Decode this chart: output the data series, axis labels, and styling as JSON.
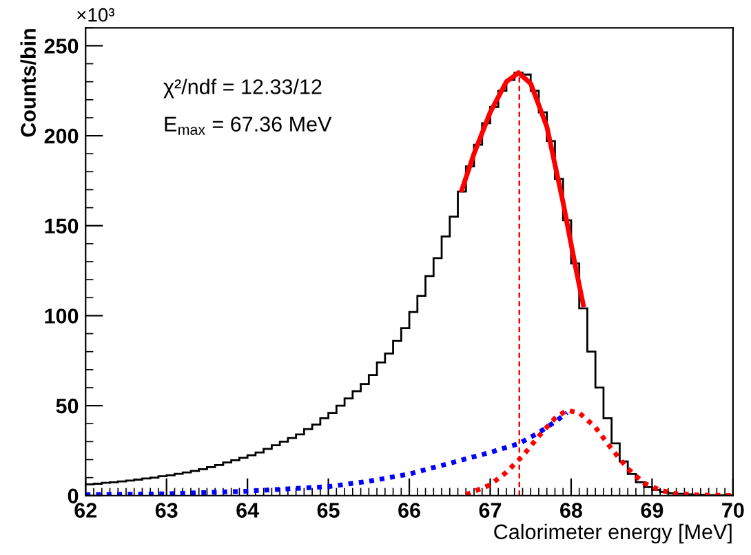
{
  "chart_data": {
    "type": "histogram",
    "color": "#000000",
    "xlabel": "Calorimeter energy [MeV]",
    "ylabel": "Counts/bin",
    "xlim": [
      62,
      70
    ],
    "ylim": [
      0,
      260
    ],
    "xticks": [
      62,
      63,
      64,
      65,
      66,
      67,
      68,
      69,
      70
    ],
    "yticks": [
      0,
      50,
      100,
      150,
      200,
      250
    ],
    "bins": [
      62.0,
      62.1,
      62.2,
      62.3,
      62.4,
      62.5,
      62.6,
      62.7,
      62.8,
      62.9,
      63.0,
      63.1,
      63.2,
      63.3,
      63.4,
      63.5,
      63.6,
      63.7,
      63.8,
      63.9,
      64.0,
      64.1,
      64.2,
      64.3,
      64.4,
      64.5,
      64.6,
      64.7,
      64.8,
      64.9,
      65.0,
      65.1,
      65.2,
      65.3,
      65.4,
      65.5,
      65.6,
      65.7,
      65.8,
      65.9,
      66.0,
      66.1,
      66.2,
      66.3,
      66.4,
      66.5,
      66.6,
      66.7,
      66.8,
      66.9,
      67.0,
      67.1,
      67.2,
      67.3,
      67.4,
      67.5,
      67.6,
      67.7,
      67.8,
      67.9,
      68.0,
      68.1,
      68.2,
      68.3,
      68.4,
      68.5,
      68.6,
      68.7,
      68.8,
      68.9,
      69.0,
      69.1,
      69.2,
      69.3,
      69.4,
      69.5,
      69.6,
      69.7,
      69.8,
      69.9,
      70.0
    ],
    "values": [
      6.3,
      6.6,
      7.1,
      7.4,
      7.9,
      8.4,
      8.9,
      9.5,
      10,
      10.8,
      11.3,
      12.1,
      12.9,
      13.7,
      14.7,
      15.8,
      17,
      18.4,
      19.7,
      21,
      22.4,
      24,
      26,
      28,
      30,
      32,
      34,
      37,
      39.5,
      43,
      46,
      50,
      54,
      58,
      62,
      67,
      74,
      79,
      86,
      93,
      102,
      111,
      122,
      132,
      144,
      155,
      169,
      183,
      195,
      207,
      216,
      225,
      231,
      235,
      234,
      225,
      213,
      197,
      176,
      153,
      129,
      104,
      80,
      60,
      43,
      29,
      19,
      12,
      7.4,
      4.7,
      3.2,
      2.1,
      1.3,
      1.0,
      0.7,
      0.5,
      0.4,
      0.3,
      0.2,
      0.2
    ],
    "series": [
      {
        "type": "line",
        "color": "#ff0000",
        "line_style": "solid",
        "x": [
          66.65,
          66.8,
          67.0,
          67.2,
          67.35,
          67.5,
          67.7,
          67.9,
          68.05,
          68.15
        ],
        "values": [
          170,
          190,
          213,
          230,
          235,
          229,
          205,
          163,
          128,
          106
        ]
      },
      {
        "type": "line",
        "color": "#0000ff",
        "line_style": "dotted",
        "x": [
          62,
          63,
          64,
          65,
          65.5,
          66,
          66.5,
          67,
          67.36,
          67.6,
          67.8,
          67.95
        ],
        "values": [
          0.5,
          1,
          2.5,
          5,
          8,
          12,
          18,
          24,
          29,
          35,
          41,
          46
        ]
      },
      {
        "type": "line",
        "color": "#ff0000",
        "line_style": "dotted",
        "x": [
          66.7,
          67.0,
          67.2,
          67.4,
          67.6,
          67.8,
          67.95,
          68.1,
          68.3,
          68.5,
          68.7,
          68.9,
          69.1,
          69.3,
          69.6,
          70
        ],
        "values": [
          0.5,
          6,
          13,
          22,
          33,
          43,
          47.5,
          46,
          38,
          26,
          15,
          7,
          3,
          1,
          0.3,
          0.1
        ]
      },
      {
        "type": "line",
        "color": "#ff0000",
        "line_style": "dashed",
        "x": [
          67.36,
          67.36
        ],
        "values": [
          0,
          235
        ]
      }
    ],
    "annotations": [
      "×10³",
      "χ²/ndf = 12.33/12",
      "E$_{max}$ = 67.36 MeV"
    ],
    "grid": false,
    "legend": false
  }
}
